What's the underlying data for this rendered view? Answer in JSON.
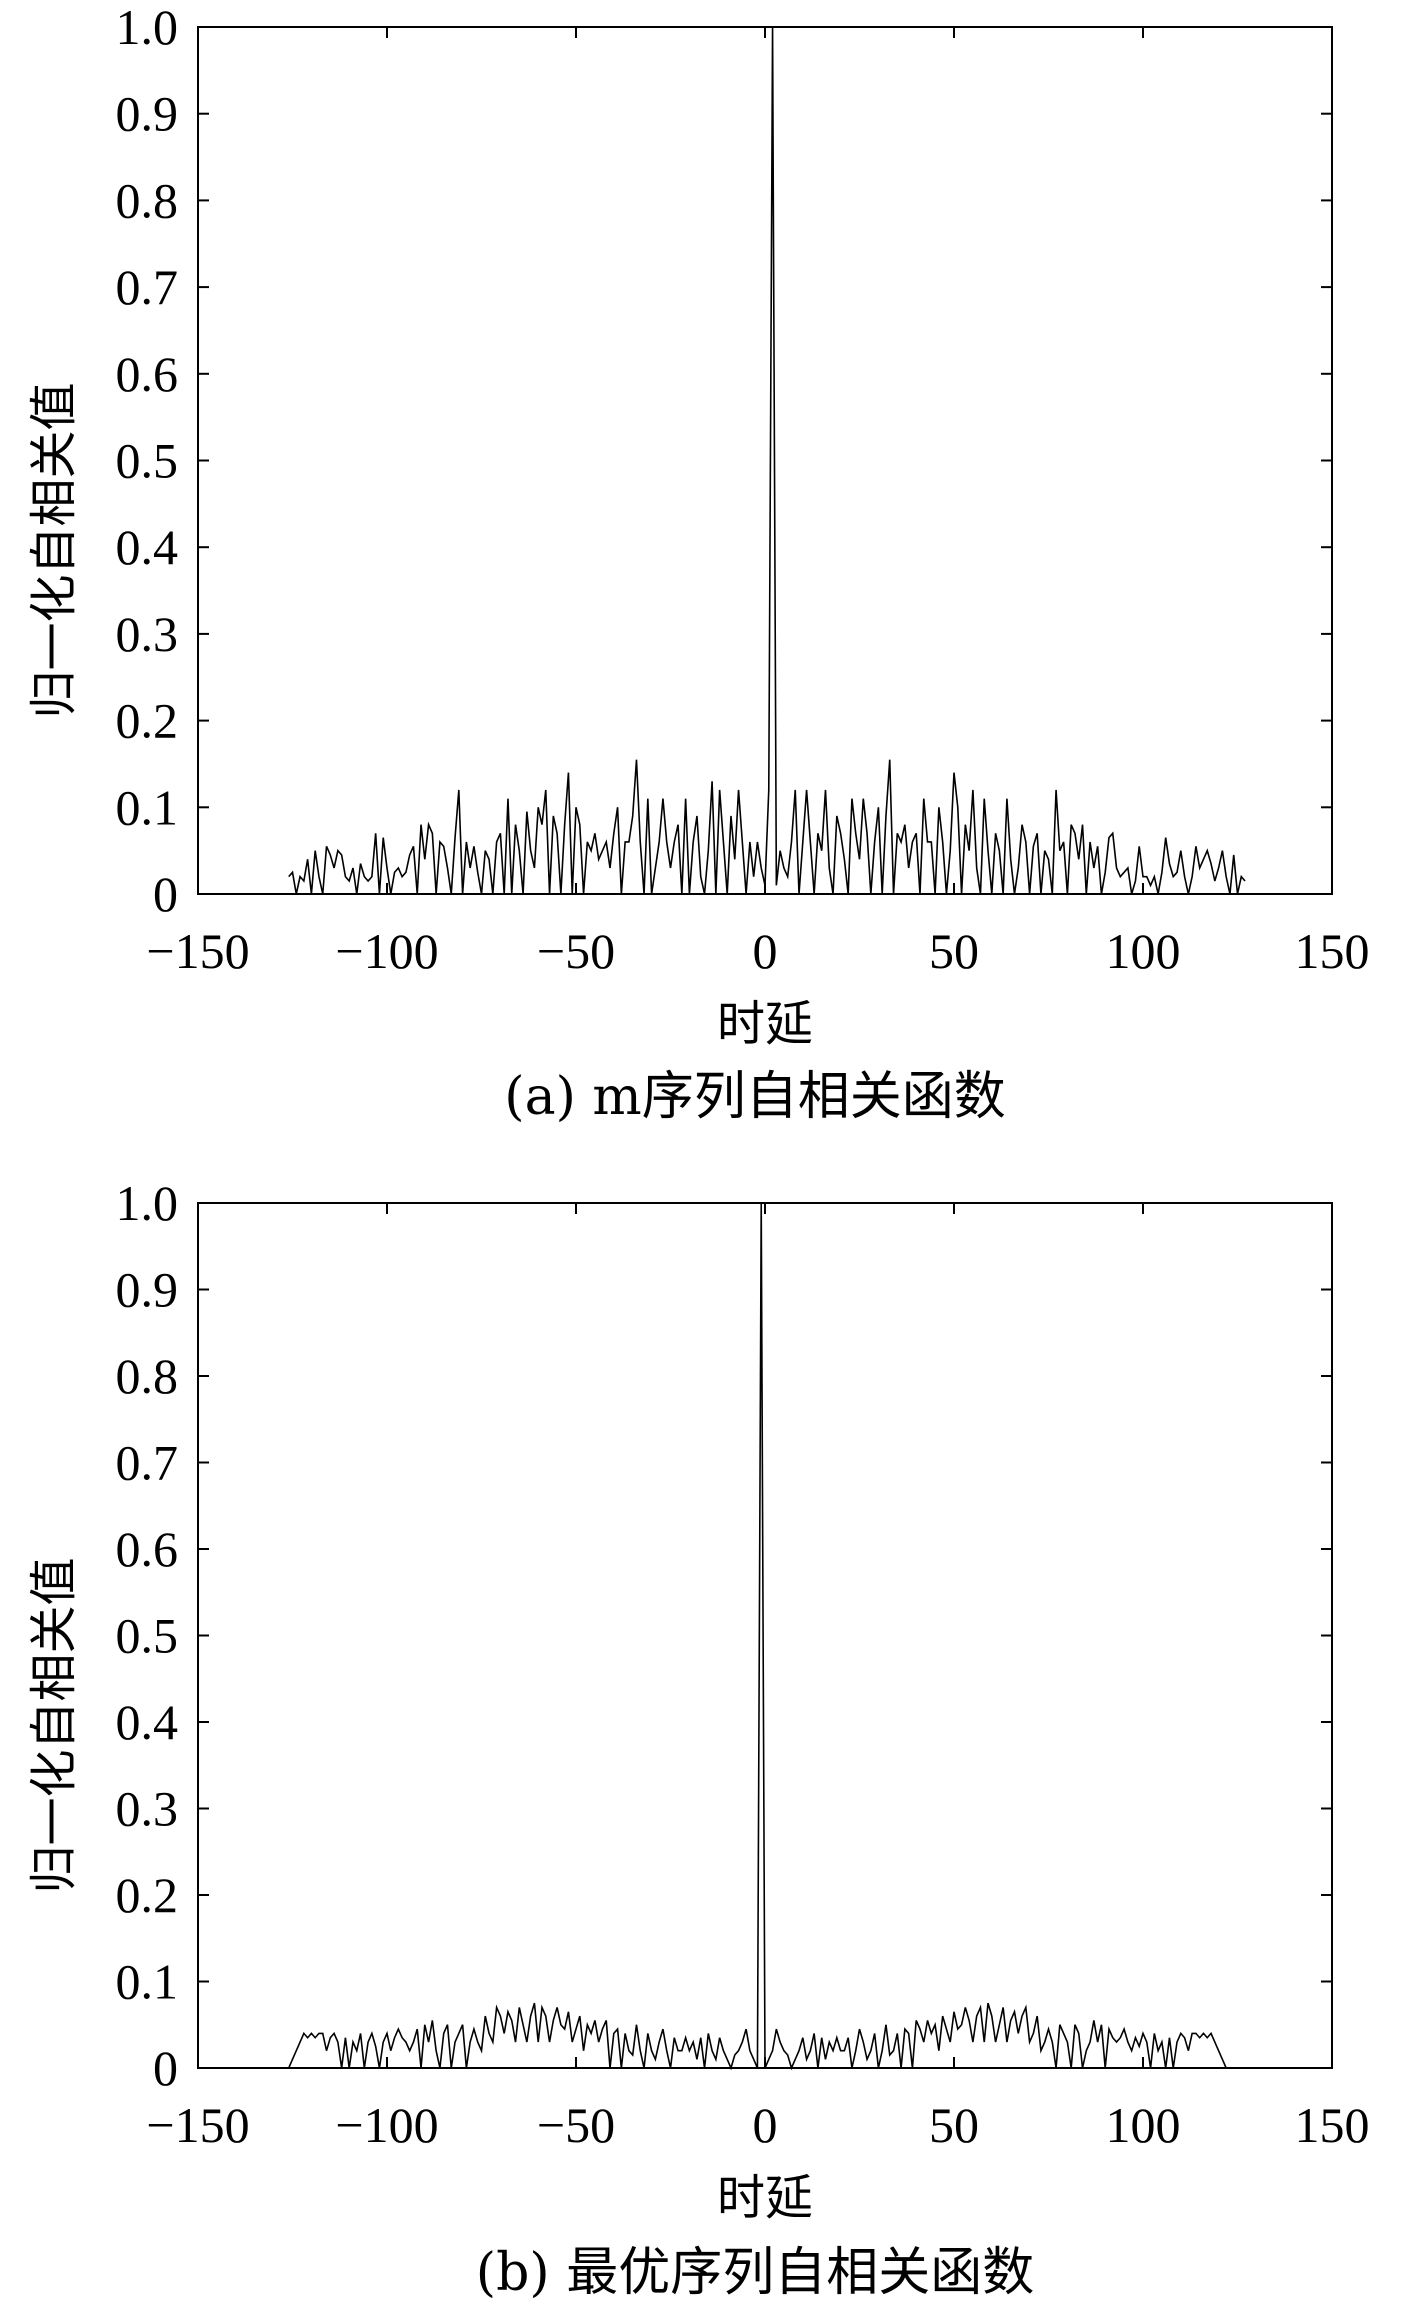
{
  "chart_data": [
    {
      "type": "line",
      "caption": "(a) m序列自相关函数",
      "xlabel": "时延",
      "ylabel": "归一化自相关值",
      "xlim": [
        -150,
        150
      ],
      "ylim": [
        0,
        1.0
      ],
      "xticks": [
        -150,
        -100,
        -50,
        0,
        50,
        100,
        150
      ],
      "xtick_labels": [
        "−150",
        "−100",
        "−50",
        "0",
        "50",
        "100",
        "150"
      ],
      "yticks": [
        0,
        0.1,
        0.2,
        0.3,
        0.4,
        0.5,
        0.6,
        0.7,
        0.8,
        0.9,
        1.0
      ],
      "ytick_labels": [
        "0",
        "0.1",
        "0.2",
        "0.3",
        "0.4",
        "0.5",
        "0.6",
        "0.7",
        "0.8",
        "0.9",
        "1.0"
      ],
      "grid": false,
      "series": [
        {
          "x_start": -126,
          "x_step": 1,
          "y": [
            0.02,
            0.025,
            0.0,
            0.02,
            0.015,
            0.04,
            0.0,
            0.05,
            0.02,
            0.0,
            0.055,
            0.045,
            0.03,
            0.05,
            0.045,
            0.02,
            0.015,
            0.03,
            0.0,
            0.035,
            0.02,
            0.015,
            0.02,
            0.07,
            0.0,
            0.065,
            0.03,
            0.0,
            0.025,
            0.03,
            0.02,
            0.025,
            0.045,
            0.055,
            0.0,
            0.08,
            0.04,
            0.08,
            0.07,
            0.0,
            0.06,
            0.055,
            0.03,
            0.0,
            0.065,
            0.12,
            0.0,
            0.06,
            0.03,
            0.055,
            0.025,
            0.0,
            0.05,
            0.04,
            0.0,
            0.06,
            0.07,
            0.0,
            0.11,
            0.0,
            0.08,
            0.05,
            0.0,
            0.095,
            0.05,
            0.03,
            0.1,
            0.08,
            0.12,
            0.0,
            0.09,
            0.07,
            0.0,
            0.08,
            0.14,
            0.0,
            0.1,
            0.08,
            0.0,
            0.06,
            0.05,
            0.07,
            0.04,
            0.05,
            0.06,
            0.03,
            0.07,
            0.1,
            0.0,
            0.06,
            0.06,
            0.09,
            0.155,
            0.06,
            0.0,
            0.11,
            0.0,
            0.03,
            0.06,
            0.11,
            0.06,
            0.03,
            0.06,
            0.08,
            0.0,
            0.11,
            0.0,
            0.06,
            0.09,
            0.02,
            0.0,
            0.05,
            0.13,
            0.0,
            0.12,
            0.06,
            0.0,
            0.09,
            0.04,
            0.12,
            0.06,
            0.0,
            0.06,
            0.02,
            0.06,
            0.03,
            0.01,
            0.12,
            1.0,
            0.01,
            0.05,
            0.03,
            0.02,
            0.06,
            0.12,
            0.0,
            0.06,
            0.12,
            0.06,
            0.0,
            0.07,
            0.05,
            0.12,
            0.03,
            0.0,
            0.09,
            0.07,
            0.04,
            0.0,
            0.11,
            0.07,
            0.04,
            0.11,
            0.07,
            0.0,
            0.06,
            0.1,
            0.0,
            0.09,
            0.155,
            0.0,
            0.07,
            0.06,
            0.08,
            0.03,
            0.06,
            0.07,
            0.0,
            0.11,
            0.06,
            0.06,
            0.0,
            0.1,
            0.06,
            0.0,
            0.05,
            0.14,
            0.1,
            0.0,
            0.08,
            0.05,
            0.12,
            0.03,
            0.0,
            0.11,
            0.05,
            0.0,
            0.07,
            0.05,
            0.0,
            0.11,
            0.04,
            0.0,
            0.03,
            0.08,
            0.06,
            0.0,
            0.055,
            0.07,
            0.0,
            0.05,
            0.04,
            0.0,
            0.12,
            0.05,
            0.06,
            0.0,
            0.08,
            0.07,
            0.04,
            0.08,
            0.0,
            0.06,
            0.03,
            0.055,
            0.0,
            0.025,
            0.065,
            0.07,
            0.03,
            0.02,
            0.025,
            0.03,
            0.0,
            0.015,
            0.055,
            0.02,
            0.02,
            0.01,
            0.02,
            0.0,
            0.025,
            0.065,
            0.035,
            0.02,
            0.025,
            0.05,
            0.02,
            0.0,
            0.02,
            0.055,
            0.03,
            0.04,
            0.05,
            0.035,
            0.015,
            0.03,
            0.05,
            0.02,
            0.0,
            0.045,
            0.0,
            0.02,
            0.015
          ]
        }
      ]
    },
    {
      "type": "line",
      "caption": "(b) 最优序列自相关函数",
      "xlabel": "时延",
      "ylabel": "归一化自相关值",
      "xlim": [
        -150,
        150
      ],
      "ylim": [
        0,
        1.0
      ],
      "xticks": [
        -150,
        -100,
        -50,
        0,
        50,
        100,
        150
      ],
      "xtick_labels": [
        "−150",
        "−100",
        "−50",
        "0",
        "50",
        "100",
        "150"
      ],
      "yticks": [
        0,
        0.1,
        0.2,
        0.3,
        0.4,
        0.5,
        0.6,
        0.7,
        0.8,
        0.9,
        1.0
      ],
      "ytick_labels": [
        "0",
        "0.1",
        "0.2",
        "0.3",
        "0.4",
        "0.5",
        "0.6",
        "0.7",
        "0.8",
        "0.9",
        "1.0"
      ],
      "grid": false,
      "series": [
        {
          "x_start": -126,
          "x_step": 1,
          "y": [
            0.0,
            0.01,
            0.02,
            0.03,
            0.04,
            0.035,
            0.04,
            0.035,
            0.04,
            0.04,
            0.02,
            0.035,
            0.04,
            0.03,
            0.0,
            0.035,
            0.0,
            0.03,
            0.02,
            0.04,
            0.0,
            0.03,
            0.04,
            0.025,
            0.0,
            0.03,
            0.04,
            0.02,
            0.035,
            0.045,
            0.035,
            0.03,
            0.02,
            0.03,
            0.045,
            0.0,
            0.05,
            0.03,
            0.055,
            0.02,
            0.0,
            0.04,
            0.05,
            0.0,
            0.03,
            0.04,
            0.05,
            0.0,
            0.03,
            0.045,
            0.03,
            0.02,
            0.06,
            0.04,
            0.03,
            0.07,
            0.06,
            0.04,
            0.065,
            0.055,
            0.03,
            0.07,
            0.05,
            0.03,
            0.06,
            0.075,
            0.03,
            0.07,
            0.06,
            0.03,
            0.055,
            0.07,
            0.05,
            0.045,
            0.065,
            0.03,
            0.045,
            0.06,
            0.02,
            0.05,
            0.04,
            0.055,
            0.03,
            0.045,
            0.055,
            0.0,
            0.04,
            0.045,
            0.0,
            0.04,
            0.02,
            0.015,
            0.05,
            0.02,
            0.0,
            0.04,
            0.02,
            0.01,
            0.03,
            0.045,
            0.02,
            0.0,
            0.035,
            0.02,
            0.02,
            0.035,
            0.02,
            0.03,
            0.01,
            0.035,
            0.0,
            0.04,
            0.02,
            0.01,
            0.035,
            0.02,
            0.01,
            0.0,
            0.015,
            0.02,
            0.03,
            0.045,
            0.02,
            0.01,
            0.0,
            1.0,
            0.0,
            0.01,
            0.02,
            0.045,
            0.03,
            0.02,
            0.015,
            0.0,
            0.01,
            0.02,
            0.035,
            0.01,
            0.02,
            0.04,
            0.0,
            0.035,
            0.01,
            0.03,
            0.02,
            0.035,
            0.02,
            0.02,
            0.035,
            0.0,
            0.02,
            0.045,
            0.03,
            0.01,
            0.02,
            0.04,
            0.0,
            0.02,
            0.05,
            0.015,
            0.02,
            0.04,
            0.0,
            0.045,
            0.04,
            0.0,
            0.055,
            0.045,
            0.03,
            0.055,
            0.04,
            0.05,
            0.02,
            0.06,
            0.045,
            0.03,
            0.065,
            0.045,
            0.05,
            0.07,
            0.055,
            0.03,
            0.06,
            0.07,
            0.03,
            0.075,
            0.06,
            0.03,
            0.05,
            0.07,
            0.03,
            0.055,
            0.065,
            0.04,
            0.06,
            0.07,
            0.03,
            0.04,
            0.06,
            0.02,
            0.03,
            0.045,
            0.03,
            0.0,
            0.05,
            0.04,
            0.03,
            0.0,
            0.05,
            0.04,
            0.0,
            0.02,
            0.03,
            0.055,
            0.03,
            0.05,
            0.0,
            0.045,
            0.035,
            0.03,
            0.035,
            0.045,
            0.03,
            0.02,
            0.035,
            0.025,
            0.04,
            0.03,
            0.0,
            0.04,
            0.02,
            0.03,
            0.0,
            0.035,
            0.0,
            0.03,
            0.04,
            0.035,
            0.02,
            0.04,
            0.04,
            0.035,
            0.04,
            0.035,
            0.04,
            0.03,
            0.02,
            0.01,
            0.0
          ]
        }
      ]
    }
  ]
}
